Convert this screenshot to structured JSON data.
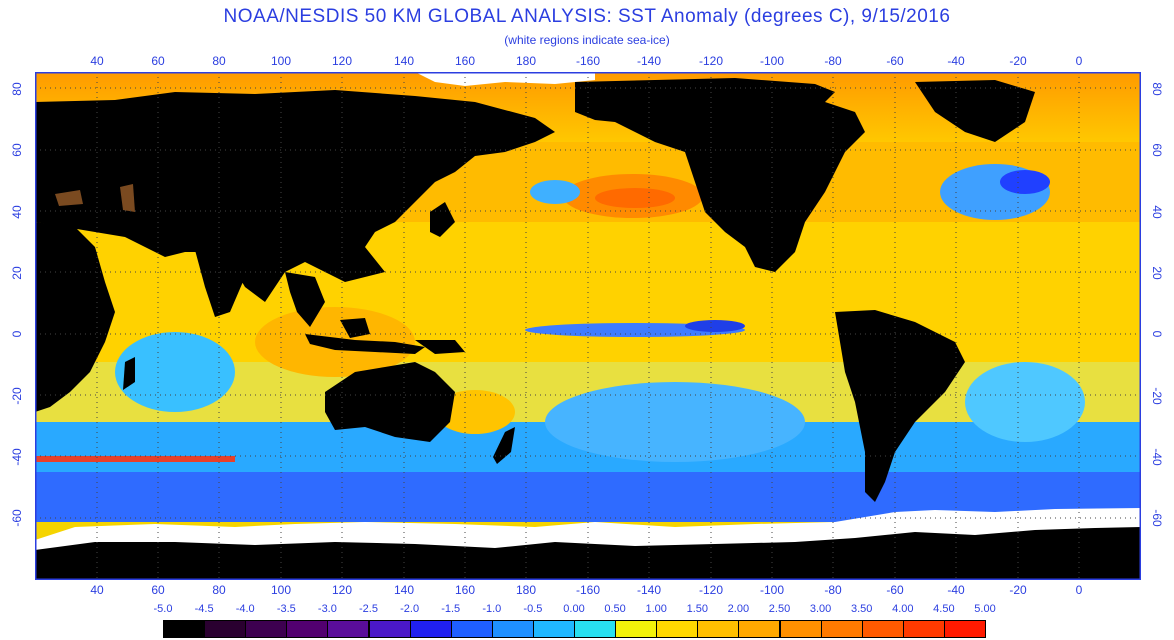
{
  "title": "NOAA/NESDIS 50 KM GLOBAL ANALYSIS: SST Anomaly (degrees C), 9/15/2016",
  "subtitle": "(white regions indicate sea-ice)",
  "longitude_ticks": [
    "40",
    "60",
    "80",
    "100",
    "120",
    "140",
    "160",
    "180",
    "-160",
    "-140",
    "-120",
    "-100",
    "-80",
    "-60",
    "-40",
    "-20",
    "0"
  ],
  "latitude_ticks": [
    "80",
    "60",
    "40",
    "20",
    "0",
    "-20",
    "-40",
    "-60"
  ],
  "colorbar": {
    "labels": [
      "-5.0",
      "-4.5",
      "-4.0",
      "-3.5",
      "-3.0",
      "-2.5",
      "-2.0",
      "-1.5",
      "-1.0",
      "-0.5",
      "0.00",
      "0.50",
      "1.00",
      "1.50",
      "2.00",
      "2.50",
      "3.00",
      "3.50",
      "4.00",
      "4.50",
      "5.00"
    ],
    "colors": [
      "#000000",
      "#2a0030",
      "#3d0050",
      "#520070",
      "#5a0d9a",
      "#4a18c8",
      "#2020f0",
      "#1f5fff",
      "#1f90ff",
      "#20b8ff",
      "#28e0f0",
      "#f2f20a",
      "#ffd800",
      "#ffbf00",
      "#ffa800",
      "#ff9000",
      "#ff7a00",
      "#ff5a00",
      "#ff3a00",
      "#ff1a00"
    ]
  },
  "colors": {
    "land": "#000000",
    "sea_ice": "#ffffff",
    "frame": "#2b3ee0",
    "grid": "#444444"
  }
}
